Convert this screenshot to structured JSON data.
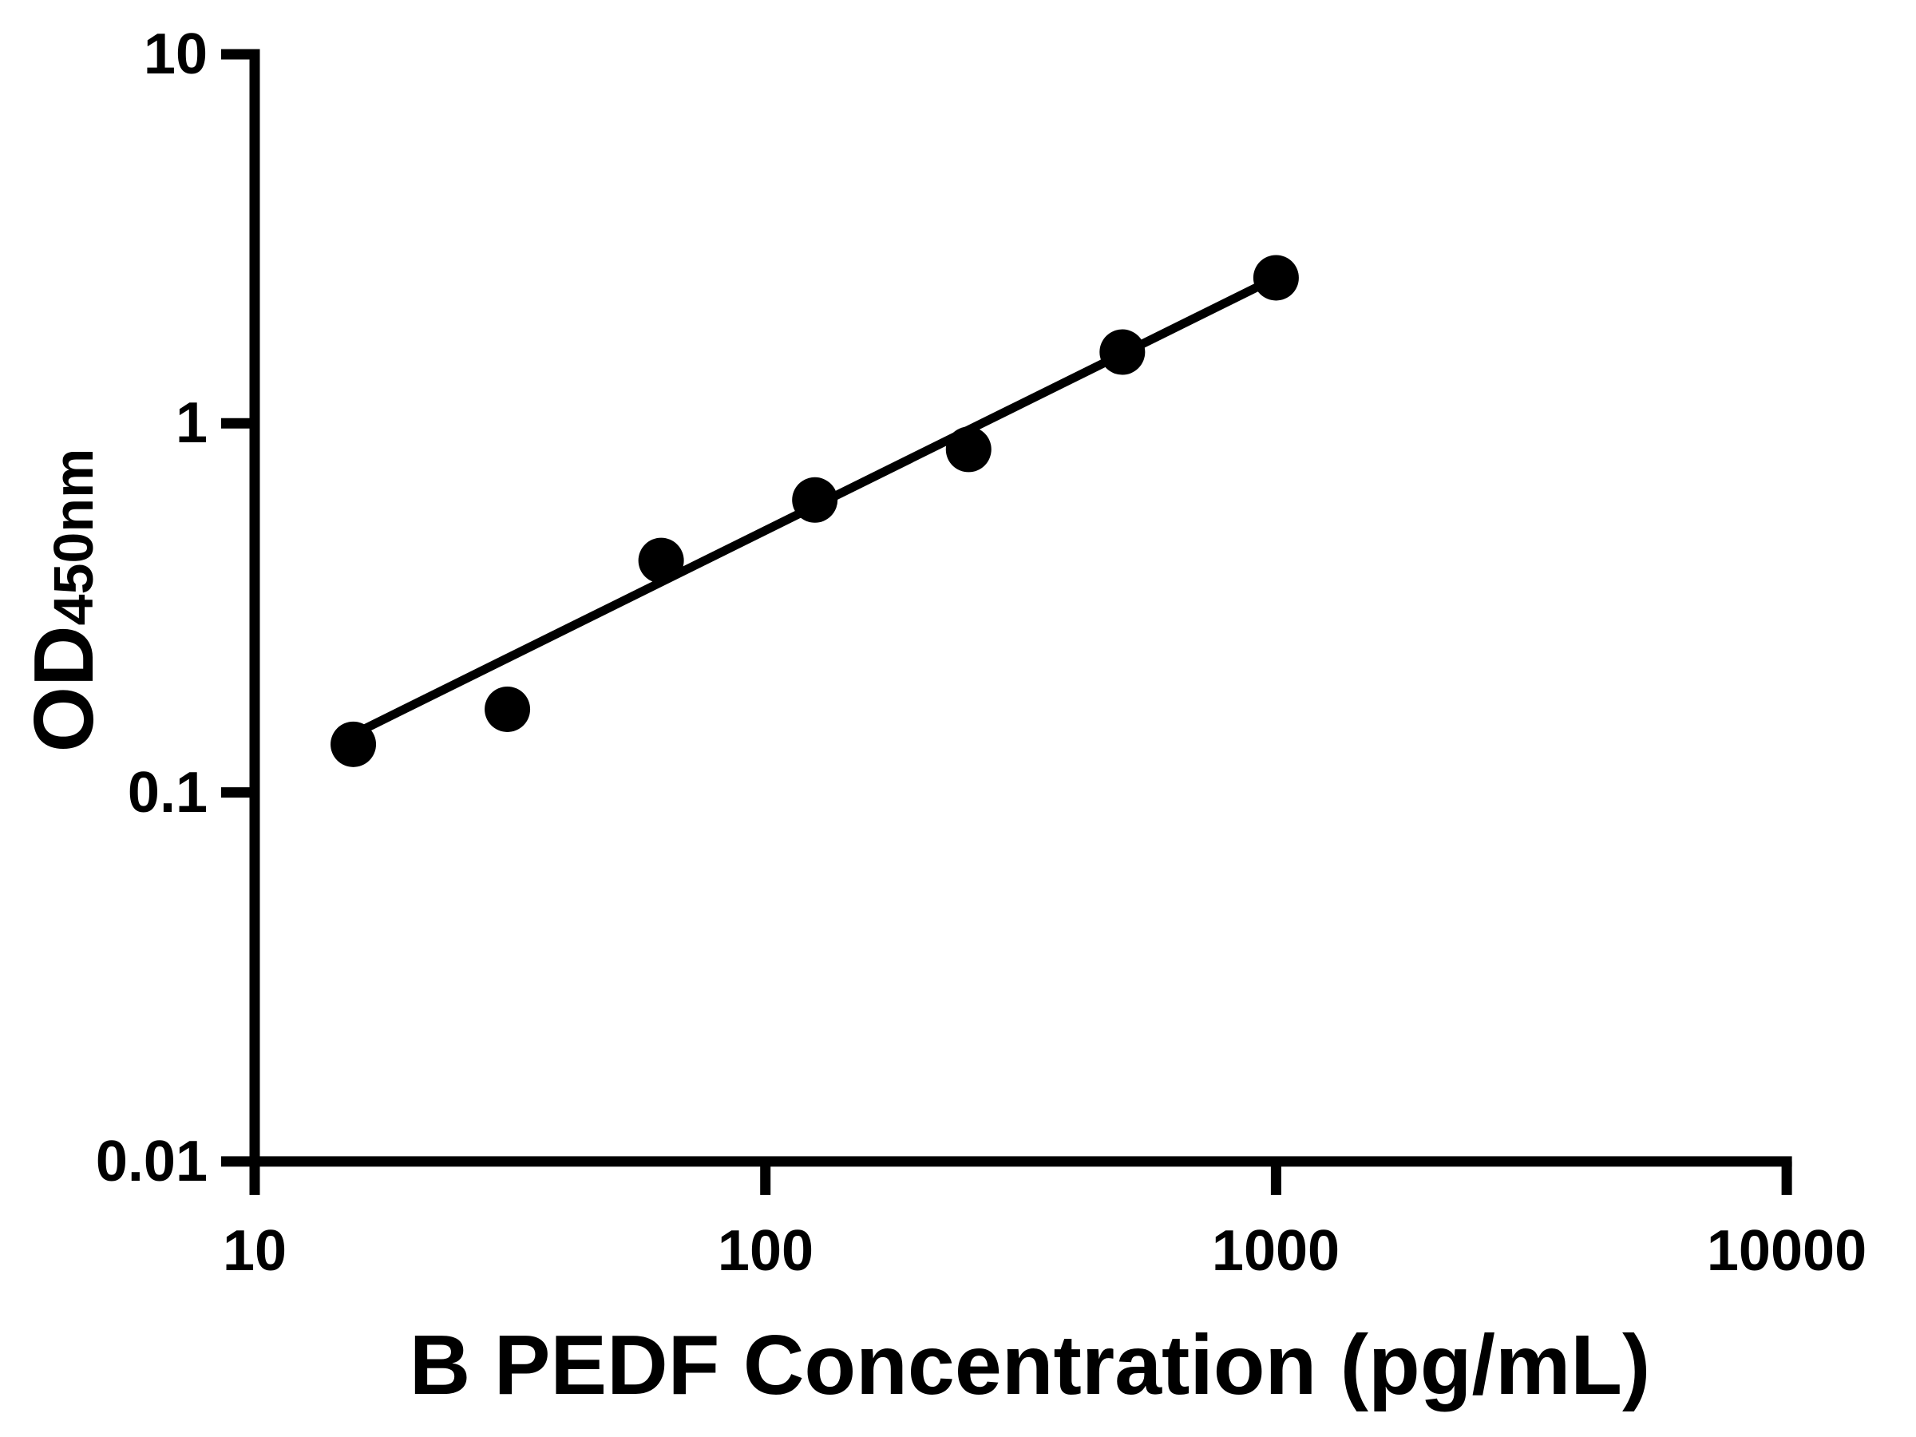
{
  "page": {
    "background_color": "#ffffff",
    "foreground_color": "#000000"
  },
  "chart_data": {
    "type": "scatter",
    "title": "",
    "xlabel": "B PEDF Concentration (pg/mL)",
    "ylabel_main": "OD",
    "ylabel_sub": "450nm",
    "x_scale": "log",
    "y_scale": "log",
    "xlim": [
      10,
      10000
    ],
    "ylim": [
      0.01,
      10
    ],
    "grid": false,
    "legend": false,
    "marker_color": "#000000",
    "line_color": "#000000",
    "axis_color": "#000000",
    "x_ticks": [
      {
        "value": 10,
        "label": "10"
      },
      {
        "value": 100,
        "label": "100"
      },
      {
        "value": 1000,
        "label": "1000"
      },
      {
        "value": 10000,
        "label": "10000"
      }
    ],
    "y_ticks": [
      {
        "value": 10,
        "label": "10"
      },
      {
        "value": 1,
        "label": "1"
      },
      {
        "value": 0.1,
        "label": "0.1"
      },
      {
        "value": 0.01,
        "label": "0.01"
      }
    ],
    "points": [
      {
        "x": 15.6,
        "od": 0.135
      },
      {
        "x": 31.25,
        "od": 0.168
      },
      {
        "x": 62.5,
        "od": 0.425
      },
      {
        "x": 125,
        "od": 0.62
      },
      {
        "x": 250,
        "od": 0.85
      },
      {
        "x": 500,
        "od": 1.56
      },
      {
        "x": 1000,
        "od": 2.48
      }
    ],
    "trend_line": {
      "x1": 16.3,
      "y1": 0.148,
      "x2": 1000,
      "y2": 2.48
    }
  }
}
